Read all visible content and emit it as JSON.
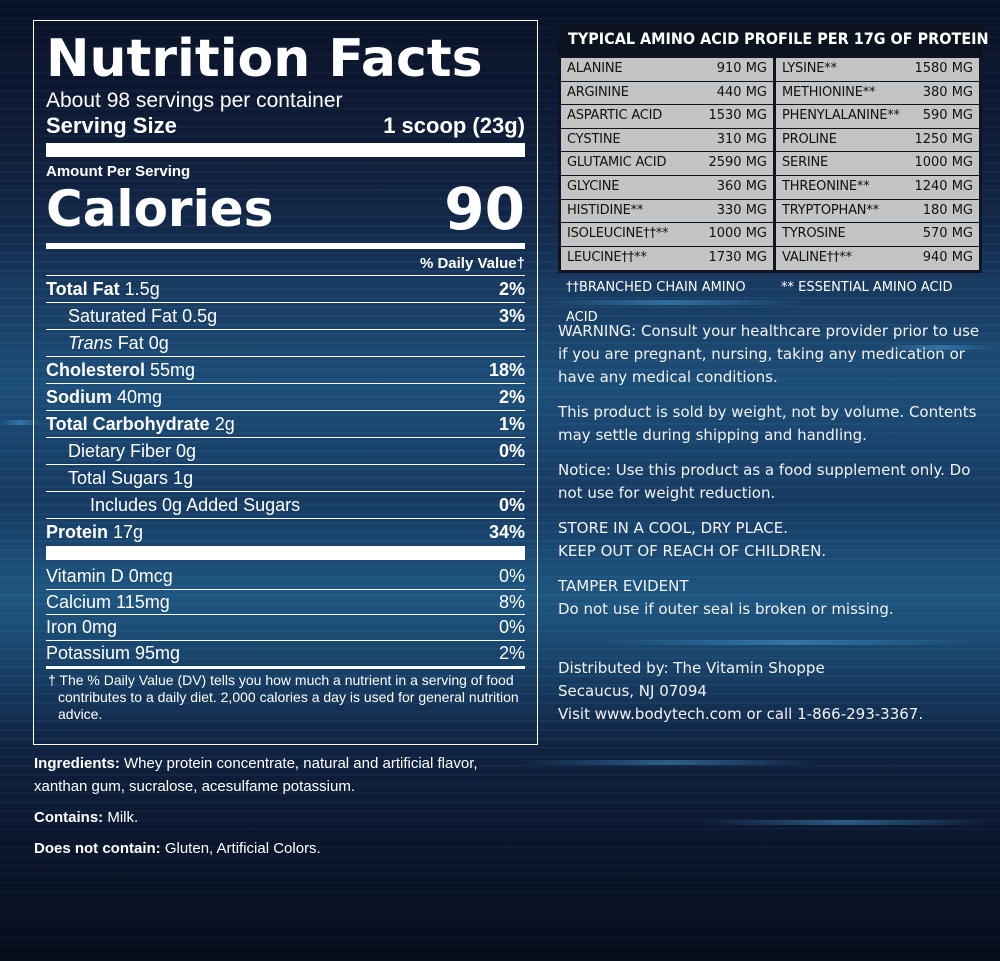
{
  "nutrition": {
    "title": "Nutrition Facts",
    "servings": "About 98 servings per container",
    "serving_size_label": "Serving Size",
    "serving_size_value": "1 scoop (23g)",
    "amount_per_serving": "Amount Per Serving",
    "calories_label": "Calories",
    "calories_value": "90",
    "dv_header": "% Daily Value†",
    "rows": [
      {
        "name": "Total Fat",
        "amount": " 1.5g",
        "dv": "2%"
      },
      {
        "name": "Saturated Fat 0.5g",
        "dv": "3%"
      },
      {
        "trans": "Trans",
        "rest": " Fat 0g"
      },
      {
        "name": "Cholesterol",
        "amount": " 55mg",
        "dv": "18%"
      },
      {
        "name": "Sodium",
        "amount": " 40mg",
        "dv": "2%"
      },
      {
        "name": "Total Carbohydrate",
        "amount": " 2g",
        "dv": "1%"
      },
      {
        "name": "Dietary Fiber 0g",
        "dv": "0%"
      },
      {
        "name": "Total Sugars 1g"
      },
      {
        "name": "Includes 0g Added Sugars",
        "dv": "0%"
      },
      {
        "name": "Protein",
        "amount": " 17g",
        "dv": "34%"
      }
    ],
    "vitamins": [
      {
        "name": "Vitamin D 0mcg",
        "dv": "0%"
      },
      {
        "name": "Calcium 115mg",
        "dv": "8%"
      },
      {
        "name": "Iron 0mg",
        "dv": "0%"
      },
      {
        "name": "Potassium 95mg",
        "dv": "2%"
      }
    ],
    "footnote": "† The % Daily Value (DV) tells you how much a nutrient in a serving of food contributes to a daily diet. 2,000 calories a day is used for general nutrition advice."
  },
  "ingredients": {
    "ingredients_label": "Ingredients:",
    "ingredients_text": " Whey protein concentrate, natural and artificial flavor, xanthan gum, sucralose, acesulfame potassium.",
    "contains_label": "Contains:",
    "contains_text": " Milk.",
    "not_contain_label": "Does not contain:",
    "not_contain_text": " Gluten, Artificial Colors."
  },
  "amino": {
    "title": "TYPICAL AMINO ACID PROFILE PER 17G OF PROTEIN",
    "rows": [
      [
        {
          "name": "Alanine",
          "value": "910 MG"
        },
        {
          "name": "Lysine**",
          "value": "1580 MG"
        }
      ],
      [
        {
          "name": "Arginine",
          "value": "440 MG"
        },
        {
          "name": "Methionine**",
          "value": "380 MG"
        }
      ],
      [
        {
          "name": "Aspartic Acid",
          "value": "1530 MG"
        },
        {
          "name": "Phenylalanine**",
          "value": "590 MG"
        }
      ],
      [
        {
          "name": "Cystine",
          "value": "310 MG"
        },
        {
          "name": "Proline",
          "value": "1250 MG"
        }
      ],
      [
        {
          "name": "Glutamic Acid",
          "value": "2590 MG"
        },
        {
          "name": "Serine",
          "value": "1000 MG"
        }
      ],
      [
        {
          "name": "Glycine",
          "value": "360 MG"
        },
        {
          "name": "Threonine**",
          "value": "1240 MG"
        }
      ],
      [
        {
          "name": "Histidine**",
          "value": "330 MG"
        },
        {
          "name": "Tryptophan**",
          "value": "180 MG"
        }
      ],
      [
        {
          "name": "Isoleucine††**",
          "value": "1000 MG"
        },
        {
          "name": "Tyrosine",
          "value": "570 MG"
        }
      ],
      [
        {
          "name": "Leucine††**",
          "value": "1730 MG"
        },
        {
          "name": "Valine††**",
          "value": "940 MG"
        }
      ]
    ],
    "note_bcaa": "††BRANCHED CHAIN AMINO ACID",
    "note_essential": "** ESSENTIAL AMINO ACID"
  },
  "info": {
    "warning": "WARNING: Consult your healthcare provider prior to use if you are pregnant, nursing, taking any medication or have any medical conditions.",
    "weight": "This product is sold by weight, not by volume. Contents may settle during shipping and handling.",
    "notice": "Notice: Use this product as a food supplement only. Do not use for weight reduction.",
    "store1": "STORE IN A COOL, DRY PLACE.",
    "store2": "KEEP OUT OF REACH OF CHILDREN.",
    "tamper1": "TAMPER EVIDENT",
    "tamper2": "Do not use if outer seal is broken or missing.",
    "dist1": "Distributed by: The Vitamin Shoppe",
    "dist2": "Secaucus, NJ 07094",
    "dist3": "Visit www.bodytech.com or call 1-866-293-3367."
  }
}
